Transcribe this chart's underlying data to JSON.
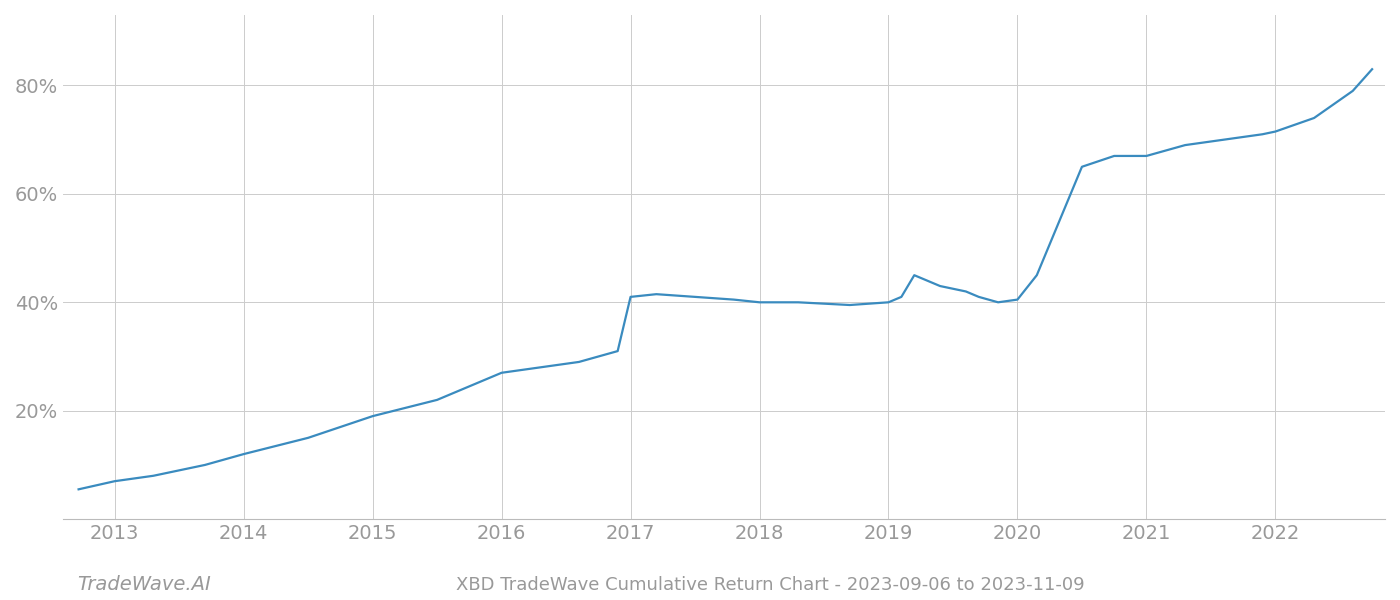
{
  "title": "XBD TradeWave Cumulative Return Chart - 2023-09-06 to 2023-11-09",
  "watermark": "TradeWave.AI",
  "line_color": "#3a8bbf",
  "background_color": "#ffffff",
  "grid_color": "#cccccc",
  "x_values": [
    2012.72,
    2013.0,
    2013.3,
    2013.7,
    2014.0,
    2014.5,
    2015.0,
    2015.5,
    2016.0,
    2016.3,
    2016.6,
    2016.9,
    2017.0,
    2017.2,
    2017.5,
    2017.8,
    2018.0,
    2018.3,
    2018.7,
    2019.0,
    2019.1,
    2019.2,
    2019.4,
    2019.6,
    2019.7,
    2019.85,
    2020.0,
    2020.15,
    2020.5,
    2020.75,
    2021.0,
    2021.3,
    2021.6,
    2021.9,
    2022.0,
    2022.3,
    2022.6,
    2022.75
  ],
  "y_values": [
    5.5,
    7,
    8,
    10,
    12,
    15,
    19,
    22,
    27,
    28,
    29,
    31,
    41,
    41.5,
    41,
    40.5,
    40,
    40,
    39.5,
    40,
    41,
    45,
    43,
    42,
    41,
    40,
    40.5,
    45,
    65,
    67,
    67,
    69,
    70,
    71,
    71.5,
    74,
    79,
    83
  ],
  "xticks": [
    2013,
    2014,
    2015,
    2016,
    2017,
    2018,
    2019,
    2020,
    2021,
    2022
  ],
  "yticks": [
    20,
    40,
    60,
    80
  ],
  "ylim": [
    0,
    93
  ],
  "xlim": [
    2012.6,
    2022.85
  ],
  "tick_label_color": "#999999",
  "tick_fontsize": 14,
  "title_fontsize": 13,
  "watermark_fontsize": 14,
  "line_width": 1.6
}
